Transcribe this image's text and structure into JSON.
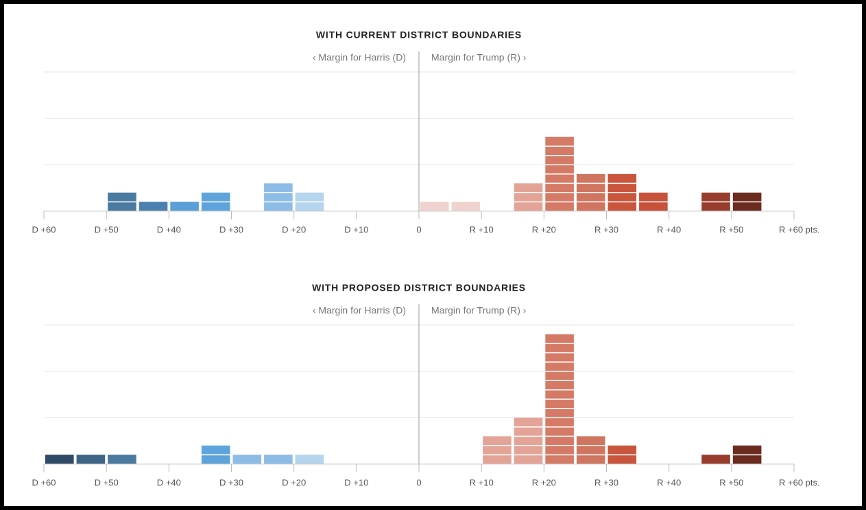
{
  "chart_data": [
    {
      "type": "histogram",
      "title": "WITH CURRENT DISTRICT BOUNDARIES",
      "left_label": "‹ Margin for Harris (D)",
      "right_label": "Margin for Trump (R) ›",
      "bins": [
        -60,
        -55,
        -50,
        -45,
        -40,
        -35,
        -30,
        -25,
        -20,
        -15,
        -10,
        -5,
        0,
        5,
        10,
        15,
        20,
        25,
        30,
        35,
        40,
        45,
        50,
        55,
        60
      ],
      "counts": [
        0,
        0,
        2,
        1,
        1,
        2,
        0,
        3,
        2,
        0,
        0,
        0,
        1,
        1,
        0,
        3,
        8,
        4,
        4,
        2,
        0,
        2,
        2,
        0
      ],
      "colors": [
        null,
        null,
        "#4b7aa1",
        "#4c80ae",
        "#5a9fd8",
        "#5ea4dc",
        null,
        "#8dbde6",
        "#b5d4ee",
        null,
        null,
        null,
        "#f0d3cf",
        "#f0d3cf",
        null,
        "#e3a497",
        "#d47a66",
        "#d07560",
        "#c9553d",
        "#c8513a",
        null,
        "#983c2d",
        "#6b2b1f",
        null
      ],
      "xlim": [
        -60,
        60
      ],
      "xticks": [
        {
          "value": -60,
          "label": "D +60"
        },
        {
          "value": -50,
          "label": "D +50"
        },
        {
          "value": -40,
          "label": "D +40"
        },
        {
          "value": -30,
          "label": "D +30"
        },
        {
          "value": -20,
          "label": "D +20"
        },
        {
          "value": -10,
          "label": "D +10"
        },
        0,
        {
          "value": 10,
          "label": "R +10"
        },
        {
          "value": 20,
          "label": "R +20"
        },
        {
          "value": 30,
          "label": "R +30"
        },
        {
          "value": 40,
          "label": "R +40"
        },
        {
          "value": 50,
          "label": "R +50"
        },
        {
          "value": 60,
          "label": "R +60 pts."
        }
      ],
      "ylim": [
        0,
        15
      ],
      "yticks": [
        0,
        5,
        10,
        15
      ],
      "grid": true
    },
    {
      "type": "histogram",
      "title": "WITH PROPOSED DISTRICT BOUNDARIES",
      "left_label": "‹ Margin for Harris (D)",
      "right_label": "Margin for Trump (R) ›",
      "bins": [
        -60,
        -55,
        -50,
        -45,
        -40,
        -35,
        -30,
        -25,
        -20,
        -15,
        -10,
        -5,
        0,
        5,
        10,
        15,
        20,
        25,
        30,
        35,
        40,
        45,
        50,
        55,
        60
      ],
      "counts": [
        1,
        1,
        1,
        0,
        0,
        2,
        1,
        1,
        1,
        0,
        0,
        0,
        0,
        0,
        3,
        5,
        14,
        3,
        2,
        0,
        0,
        1,
        2,
        0
      ],
      "colors": [
        "#2f4a67",
        "#3e6486",
        "#4b7aa1",
        null,
        null,
        "#5ea4dc",
        "#8dbde6",
        "#8dbde6",
        "#b5d4ee",
        null,
        null,
        null,
        null,
        null,
        "#e3a497",
        "#e3a497",
        "#d47a66",
        "#d07560",
        "#c9553d",
        null,
        null,
        "#983c2d",
        "#6b2b1f",
        null
      ],
      "xlim": [
        -60,
        60
      ],
      "xticks": [
        {
          "value": -60,
          "label": "D +60"
        },
        {
          "value": -50,
          "label": "D +50"
        },
        {
          "value": -40,
          "label": "D +40"
        },
        {
          "value": -30,
          "label": "D +30"
        },
        {
          "value": -20,
          "label": "D +20"
        },
        {
          "value": -10,
          "label": "D +10"
        },
        0,
        {
          "value": 10,
          "label": "R +10"
        },
        {
          "value": 20,
          "label": "R +20"
        },
        {
          "value": 30,
          "label": "R +30"
        },
        {
          "value": 40,
          "label": "R +40"
        },
        {
          "value": 50,
          "label": "R +50"
        },
        {
          "value": 60,
          "label": "R +60 pts."
        }
      ],
      "ylim": [
        0,
        15
      ],
      "yticks": [
        0,
        5,
        10,
        15
      ],
      "grid": true
    }
  ]
}
